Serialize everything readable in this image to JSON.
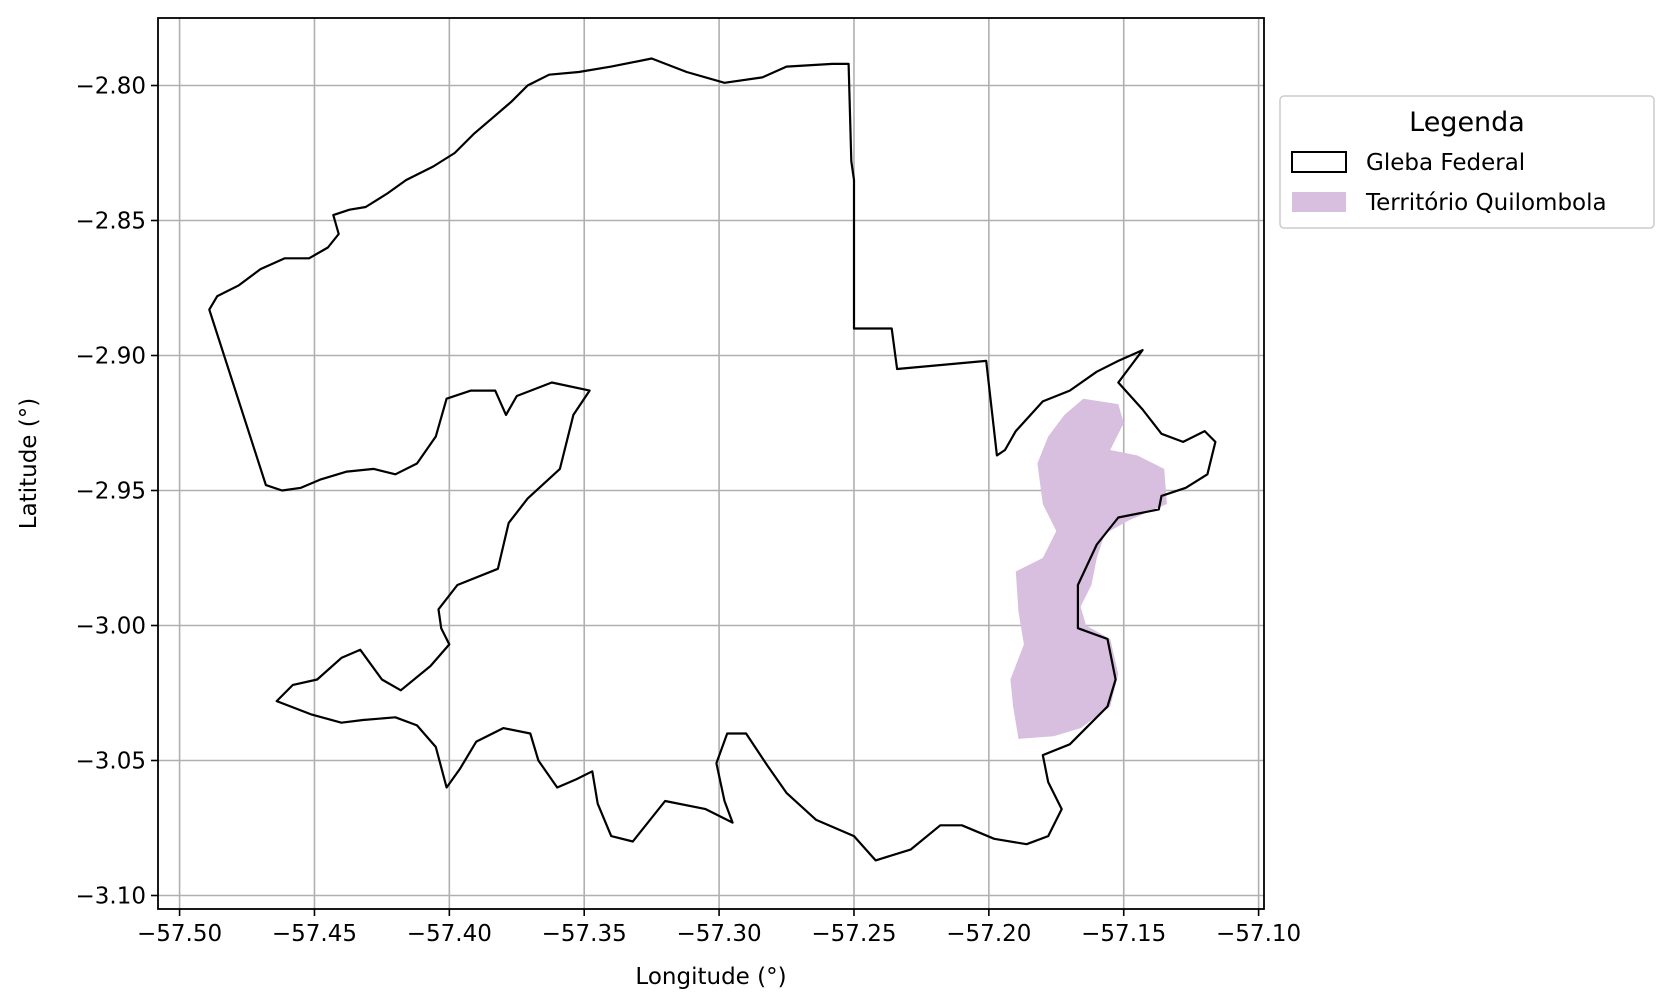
{
  "chart_data": {
    "type": "map",
    "title": "",
    "xlabel": "Longitude (°)",
    "ylabel": "Latitude (°)",
    "xlim": [
      -57.508,
      -57.098
    ],
    "ylim": [
      -3.105,
      -2.775
    ],
    "grid": true,
    "x_ticks": [
      -57.5,
      -57.45,
      -57.4,
      -57.35,
      -57.3,
      -57.25,
      -57.2,
      -57.15,
      -57.1
    ],
    "y_ticks": [
      -2.8,
      -2.85,
      -2.9,
      -2.95,
      -3.0,
      -3.05,
      -3.1
    ],
    "x_tick_labels": [
      "−57.50",
      "−57.45",
      "−57.40",
      "−57.35",
      "−57.30",
      "−57.25",
      "−57.20",
      "−57.15",
      "−57.10"
    ],
    "y_tick_labels": [
      "−2.80",
      "−2.85",
      "−2.90",
      "−2.95",
      "−3.00",
      "−3.05",
      "−3.10"
    ],
    "legend": {
      "title": "Legenda",
      "placement": "outside-right-top",
      "entries": [
        {
          "label": "Gleba Federal",
          "style": "outline",
          "color": "#000000"
        },
        {
          "label": "Território Quilombola",
          "style": "fill",
          "color": "#d8bfdf"
        }
      ]
    },
    "layers": [
      {
        "name": "Gleba Federal",
        "style": "outline",
        "stroke": "#000000",
        "polygons": [
          [
            [
              -57.489,
              -2.883
            ],
            [
              -57.486,
              -2.878
            ],
            [
              -57.478,
              -2.874
            ],
            [
              -57.47,
              -2.868
            ],
            [
              -57.461,
              -2.864
            ],
            [
              -57.452,
              -2.864
            ],
            [
              -57.445,
              -2.86
            ],
            [
              -57.441,
              -2.855
            ],
            [
              -57.443,
              -2.848
            ],
            [
              -57.437,
              -2.846
            ],
            [
              -57.431,
              -2.845
            ],
            [
              -57.423,
              -2.84
            ],
            [
              -57.416,
              -2.835
            ],
            [
              -57.406,
              -2.83
            ],
            [
              -57.398,
              -2.825
            ],
            [
              -57.391,
              -2.818
            ],
            [
              -57.384,
              -2.812
            ],
            [
              -57.377,
              -2.806
            ],
            [
              -57.371,
              -2.8
            ],
            [
              -57.363,
              -2.796
            ],
            [
              -57.352,
              -2.795
            ],
            [
              -57.34,
              -2.793
            ],
            [
              -57.325,
              -2.79
            ],
            [
              -57.312,
              -2.795
            ],
            [
              -57.298,
              -2.799
            ],
            [
              -57.284,
              -2.797
            ],
            [
              -57.275,
              -2.793
            ],
            [
              -57.258,
              -2.792
            ],
            [
              -57.252,
              -2.792
            ],
            [
              -57.251,
              -2.828
            ],
            [
              -57.25,
              -2.835
            ],
            [
              -57.25,
              -2.89
            ],
            [
              -57.236,
              -2.89
            ],
            [
              -57.234,
              -2.905
            ],
            [
              -57.201,
              -2.902
            ],
            [
              -57.197,
              -2.937
            ],
            [
              -57.194,
              -2.935
            ],
            [
              -57.19,
              -2.928
            ],
            [
              -57.18,
              -2.917
            ],
            [
              -57.17,
              -2.913
            ],
            [
              -57.16,
              -2.906
            ],
            [
              -57.152,
              -2.902
            ],
            [
              -57.143,
              -2.898
            ],
            [
              -57.152,
              -2.91
            ],
            [
              -57.143,
              -2.92
            ],
            [
              -57.136,
              -2.929
            ],
            [
              -57.128,
              -2.932
            ],
            [
              -57.12,
              -2.928
            ],
            [
              -57.116,
              -2.932
            ],
            [
              -57.119,
              -2.944
            ],
            [
              -57.127,
              -2.949
            ],
            [
              -57.136,
              -2.952
            ],
            [
              -57.137,
              -2.957
            ],
            [
              -57.152,
              -2.96
            ],
            [
              -57.16,
              -2.97
            ],
            [
              -57.167,
              -2.985
            ],
            [
              -57.167,
              -3.001
            ],
            [
              -57.156,
              -3.005
            ],
            [
              -57.153,
              -3.02
            ],
            [
              -57.156,
              -3.03
            ],
            [
              -57.17,
              -3.044
            ],
            [
              -57.18,
              -3.048
            ],
            [
              -57.178,
              -3.058
            ],
            [
              -57.173,
              -3.068
            ],
            [
              -57.178,
              -3.078
            ],
            [
              -57.186,
              -3.081
            ],
            [
              -57.198,
              -3.079
            ],
            [
              -57.21,
              -3.074
            ],
            [
              -57.218,
              -3.074
            ],
            [
              -57.229,
              -3.083
            ],
            [
              -57.242,
              -3.087
            ],
            [
              -57.25,
              -3.078
            ],
            [
              -57.264,
              -3.072
            ],
            [
              -57.275,
              -3.062
            ],
            [
              -57.282,
              -3.052
            ],
            [
              -57.29,
              -3.04
            ],
            [
              -57.297,
              -3.04
            ],
            [
              -57.301,
              -3.051
            ],
            [
              -57.298,
              -3.065
            ],
            [
              -57.295,
              -3.073
            ],
            [
              -57.305,
              -3.068
            ],
            [
              -57.32,
              -3.065
            ],
            [
              -57.332,
              -3.08
            ],
            [
              -57.34,
              -3.078
            ],
            [
              -57.345,
              -3.066
            ],
            [
              -57.347,
              -3.054
            ],
            [
              -57.353,
              -3.057
            ],
            [
              -57.36,
              -3.06
            ],
            [
              -57.367,
              -3.05
            ],
            [
              -57.37,
              -3.04
            ],
            [
              -57.38,
              -3.038
            ],
            [
              -57.39,
              -3.043
            ],
            [
              -57.396,
              -3.053
            ],
            [
              -57.401,
              -3.06
            ],
            [
              -57.405,
              -3.045
            ],
            [
              -57.412,
              -3.037
            ],
            [
              -57.42,
              -3.034
            ],
            [
              -57.432,
              -3.035
            ],
            [
              -57.44,
              -3.036
            ],
            [
              -57.451,
              -3.033
            ],
            [
              -57.464,
              -3.028
            ],
            [
              -57.458,
              -3.022
            ],
            [
              -57.449,
              -3.02
            ],
            [
              -57.44,
              -3.012
            ],
            [
              -57.433,
              -3.009
            ],
            [
              -57.425,
              -3.02
            ],
            [
              -57.418,
              -3.024
            ],
            [
              -57.407,
              -3.015
            ],
            [
              -57.4,
              -3.007
            ],
            [
              -57.403,
              -3.001
            ],
            [
              -57.404,
              -2.994
            ],
            [
              -57.397,
              -2.985
            ],
            [
              -57.382,
              -2.979
            ],
            [
              -57.378,
              -2.962
            ],
            [
              -57.371,
              -2.953
            ],
            [
              -57.359,
              -2.942
            ],
            [
              -57.356,
              -2.93
            ],
            [
              -57.354,
              -2.922
            ],
            [
              -57.348,
              -2.913
            ],
            [
              -57.362,
              -2.91
            ],
            [
              -57.375,
              -2.915
            ],
            [
              -57.379,
              -2.922
            ],
            [
              -57.383,
              -2.913
            ],
            [
              -57.392,
              -2.913
            ],
            [
              -57.401,
              -2.916
            ],
            [
              -57.405,
              -2.93
            ],
            [
              -57.412,
              -2.94
            ],
            [
              -57.42,
              -2.944
            ],
            [
              -57.428,
              -2.942
            ],
            [
              -57.438,
              -2.943
            ],
            [
              -57.448,
              -2.946
            ],
            [
              -57.455,
              -2.949
            ],
            [
              -57.462,
              -2.95
            ],
            [
              -57.468,
              -2.948
            ],
            [
              -57.489,
              -2.883
            ]
          ]
        ]
      },
      {
        "name": "Território Quilombola",
        "style": "fill",
        "fill": "#d8bfdf",
        "polygons": [
          [
            [
              -57.165,
              -2.916
            ],
            [
              -57.152,
              -2.918
            ],
            [
              -57.15,
              -2.925
            ],
            [
              -57.155,
              -2.935
            ],
            [
              -57.145,
              -2.937
            ],
            [
              -57.135,
              -2.942
            ],
            [
              -57.134,
              -2.955
            ],
            [
              -57.148,
              -2.961
            ],
            [
              -57.157,
              -2.966
            ],
            [
              -57.16,
              -2.975
            ],
            [
              -57.162,
              -2.985
            ],
            [
              -57.166,
              -2.993
            ],
            [
              -57.164,
              -3.0
            ],
            [
              -57.155,
              -3.005
            ],
            [
              -57.152,
              -3.018
            ],
            [
              -57.155,
              -3.03
            ],
            [
              -57.166,
              -3.038
            ],
            [
              -57.176,
              -3.041
            ],
            [
              -57.189,
              -3.042
            ],
            [
              -57.191,
              -3.03
            ],
            [
              -57.192,
              -3.02
            ],
            [
              -57.187,
              -3.007
            ],
            [
              -57.189,
              -2.995
            ],
            [
              -57.19,
              -2.98
            ],
            [
              -57.18,
              -2.975
            ],
            [
              -57.175,
              -2.965
            ],
            [
              -57.18,
              -2.955
            ],
            [
              -57.182,
              -2.94
            ],
            [
              -57.178,
              -2.93
            ],
            [
              -57.172,
              -2.922
            ],
            [
              -57.165,
              -2.916
            ]
          ]
        ]
      }
    ]
  }
}
